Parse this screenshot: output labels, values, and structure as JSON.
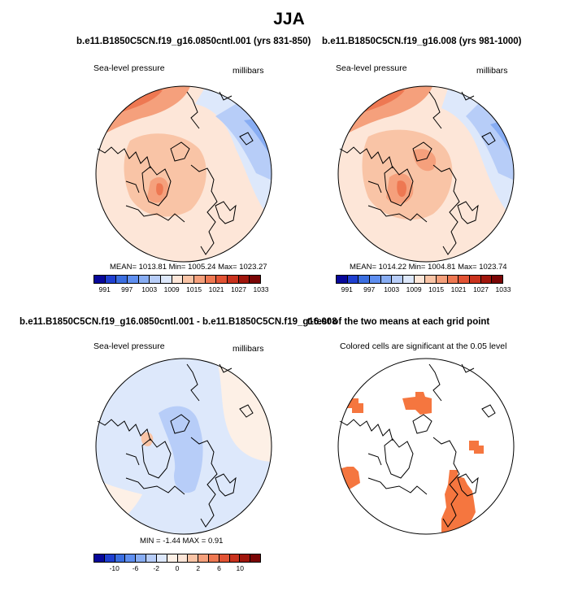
{
  "season_title": "JJA",
  "panels": {
    "top_left": {
      "title": "b.e11.B1850C5CN.f19_g16.0850cntl.001 (yrs 831-850)",
      "left_label": "Sea-level pressure",
      "right_label": "millibars",
      "stats": "MEAN= 1013.81  Min= 1005.24  Max= 1023.27"
    },
    "top_right": {
      "title": "b.e11.B1850C5CN.f19_g16.008 (yrs 981-1000)",
      "left_label": "Sea-level pressure",
      "right_label": "millibars",
      "stats": "MEAN= 1014.22  Min= 1004.81  Max= 1023.74"
    },
    "bottom_left": {
      "title": "b.e11.B1850C5CN.f19_g16.0850cntl.001 - b.e11.B1850C5CN.f19_g16.008",
      "left_label": "Sea-level pressure",
      "right_label": "millibars",
      "stats": "MIN =  -1.44  MAX =   0.91"
    },
    "bottom_right": {
      "title": "t-test of the two means at each grid point",
      "subtitle": "Colored cells are significant at the 0.05 level"
    }
  },
  "colorbar_abs": {
    "colors": [
      "#08089a",
      "#1f3fd0",
      "#3b6ee0",
      "#5f8ff0",
      "#88adf3",
      "#b7cdf8",
      "#dde8fb",
      "#fde6d8",
      "#f9c4a6",
      "#f5a07c",
      "#ee7852",
      "#e25334",
      "#c9321d",
      "#a0160c",
      "#7a0505"
    ],
    "tick_labels": [
      "991",
      "997",
      "1003",
      "1009",
      "1015",
      "1021",
      "1027",
      "1033"
    ]
  },
  "colorbar_diff": {
    "colors": [
      "#08089a",
      "#1f3fd0",
      "#3b6ee0",
      "#5f8ff0",
      "#88adf3",
      "#b7cdf8",
      "#dde8fb",
      "#fdf0e6",
      "#fde6d8",
      "#f9c4a6",
      "#f5a07c",
      "#ee7852",
      "#e25334",
      "#c9321d",
      "#a0160c",
      "#7a0505"
    ],
    "tick_labels": [
      "-10",
      "-6",
      "-2",
      "0",
      "2",
      "6",
      "10"
    ]
  }
}
